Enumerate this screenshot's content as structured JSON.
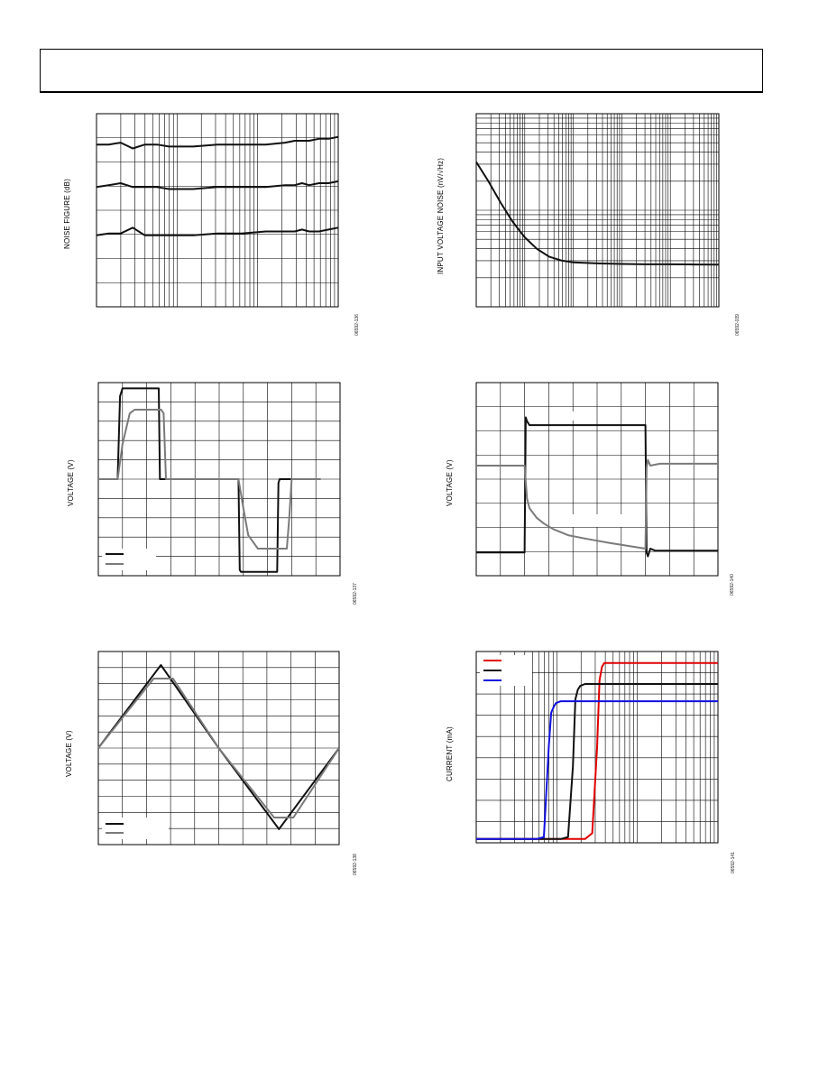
{
  "page": {
    "header": ""
  },
  "charts": [
    {
      "id": "nf",
      "figcode": "06592-136",
      "ylabel": "NOISE FIGURE (dB)"
    },
    {
      "id": "vn",
      "figcode": "06592-039",
      "ylabel": "INPUT VOLTAGE NOISE (nV/√Hz)"
    },
    {
      "id": "pulse",
      "figcode": "06592-137",
      "ylabel": "VOLTAGE (V)"
    },
    {
      "id": "step",
      "figcode": "06592-140",
      "ylabel": "VOLTAGE (V)"
    },
    {
      "id": "tri",
      "figcode": "06592-138",
      "ylabel": "VOLTAGE (V)"
    },
    {
      "id": "cur",
      "figcode": "06592-141",
      "ylabel": "CURRENT (mA)"
    }
  ],
  "chart_data": [
    {
      "type": "line",
      "ylabel": "NOISE FIGURE (dB)",
      "xscale": "log",
      "grid": true,
      "colors": [
        "#111111"
      ],
      "series": [
        {
          "x": [
            0.0,
            0.05,
            0.1,
            0.15,
            0.2,
            0.25,
            0.3,
            0.4,
            0.5,
            0.6,
            0.7,
            0.78,
            0.82,
            0.85,
            0.88,
            0.92,
            0.96,
            1.0
          ],
          "values": [
            0.84,
            0.84,
            0.85,
            0.82,
            0.84,
            0.84,
            0.83,
            0.83,
            0.84,
            0.84,
            0.84,
            0.85,
            0.86,
            0.86,
            0.86,
            0.87,
            0.87,
            0.88
          ]
        },
        {
          "x": [
            0.0,
            0.05,
            0.1,
            0.15,
            0.2,
            0.25,
            0.3,
            0.4,
            0.5,
            0.6,
            0.7,
            0.78,
            0.82,
            0.85,
            0.88,
            0.92,
            0.96,
            1.0
          ],
          "values": [
            0.62,
            0.63,
            0.64,
            0.62,
            0.62,
            0.62,
            0.61,
            0.61,
            0.62,
            0.62,
            0.62,
            0.63,
            0.63,
            0.64,
            0.63,
            0.64,
            0.64,
            0.65
          ]
        },
        {
          "x": [
            0.0,
            0.05,
            0.1,
            0.15,
            0.2,
            0.25,
            0.3,
            0.4,
            0.5,
            0.6,
            0.7,
            0.78,
            0.82,
            0.85,
            0.88,
            0.92,
            0.96,
            1.0
          ],
          "values": [
            0.37,
            0.38,
            0.38,
            0.41,
            0.37,
            0.37,
            0.37,
            0.37,
            0.38,
            0.38,
            0.39,
            0.39,
            0.39,
            0.4,
            0.39,
            0.39,
            0.4,
            0.41
          ]
        }
      ]
    },
    {
      "type": "line",
      "ylabel": "INPUT VOLTAGE NOISE (nV/√Hz)",
      "xscale": "log",
      "yscale": "log",
      "grid": true,
      "colors": [
        "#111111"
      ],
      "series": [
        {
          "x": [
            0.0,
            0.05,
            0.1,
            0.15,
            0.2,
            0.25,
            0.3,
            0.35,
            0.4,
            0.5,
            0.6,
            0.7,
            0.8,
            0.9,
            1.0
          ],
          "values": [
            0.75,
            0.65,
            0.54,
            0.44,
            0.36,
            0.3,
            0.26,
            0.24,
            0.23,
            0.225,
            0.222,
            0.22,
            0.22,
            0.219,
            0.218
          ]
        }
      ]
    },
    {
      "type": "line",
      "ylabel": "VOLTAGE (V)",
      "grid": true,
      "legend": "bottom-left",
      "colors": [
        "#111111",
        "#7a7a7a"
      ],
      "series": [
        {
          "x": [
            0.0,
            0.08,
            0.09,
            0.1,
            0.25,
            0.255,
            0.26,
            0.3,
            0.58,
            0.585,
            0.59,
            0.74,
            0.745,
            0.75,
            0.8
          ],
          "values": [
            0.5,
            0.5,
            0.93,
            0.97,
            0.97,
            0.5,
            0.5,
            0.5,
            0.5,
            0.03,
            0.02,
            0.02,
            0.48,
            0.5,
            0.5
          ]
        },
        {
          "x": [
            0.0,
            0.08,
            0.1,
            0.13,
            0.15,
            0.26,
            0.27,
            0.28,
            0.55,
            0.58,
            0.6,
            0.62,
            0.66,
            0.7,
            0.78,
            0.79,
            0.8,
            0.92
          ],
          "values": [
            0.5,
            0.5,
            0.68,
            0.84,
            0.86,
            0.86,
            0.84,
            0.5,
            0.5,
            0.5,
            0.35,
            0.21,
            0.14,
            0.14,
            0.14,
            0.3,
            0.5,
            0.5
          ]
        }
      ]
    },
    {
      "type": "line",
      "ylabel": "VOLTAGE (V)",
      "grid": true,
      "colors": [
        "#111111",
        "#7a7a7a"
      ],
      "series": [
        {
          "x": [
            0.0,
            0.2,
            0.205,
            0.21,
            0.22,
            0.7,
            0.705,
            0.71,
            0.72,
            0.74,
            1.0
          ],
          "values": [
            0.12,
            0.12,
            0.82,
            0.8,
            0.78,
            0.78,
            0.12,
            0.1,
            0.14,
            0.13,
            0.13
          ]
        },
        {
          "x": [
            0.0,
            0.2,
            0.21,
            0.22,
            0.25,
            0.28,
            0.32,
            0.38,
            0.46,
            0.55,
            0.65,
            0.7,
            0.705,
            0.71,
            0.72,
            0.76,
            1.0
          ],
          "values": [
            0.57,
            0.57,
            0.4,
            0.35,
            0.3,
            0.27,
            0.24,
            0.21,
            0.19,
            0.17,
            0.15,
            0.14,
            0.56,
            0.6,
            0.57,
            0.58,
            0.58
          ]
        }
      ]
    },
    {
      "type": "line",
      "ylabel": "VOLTAGE (V)",
      "grid": true,
      "legend": "bottom-left",
      "colors": [
        "#111111",
        "#7a7a7a"
      ],
      "series": [
        {
          "x": [
            0.0,
            0.26,
            0.5,
            0.75,
            1.0
          ],
          "values": [
            0.5,
            0.93,
            0.5,
            0.08,
            0.5
          ]
        },
        {
          "x": [
            0.0,
            0.23,
            0.31,
            0.5,
            0.73,
            0.81,
            1.0
          ],
          "values": [
            0.5,
            0.86,
            0.86,
            0.5,
            0.14,
            0.14,
            0.5
          ]
        }
      ]
    },
    {
      "type": "line",
      "ylabel": "CURRENT (mA)",
      "grid": true,
      "legend": "top-left",
      "colors": [
        "#e00000",
        "#111111",
        "#1010e0"
      ],
      "series": [
        {
          "x": [
            0.0,
            0.4,
            0.45,
            0.48,
            0.5,
            0.51,
            0.52,
            0.53,
            0.55,
            0.6,
            1.0
          ],
          "values": [
            0.02,
            0.02,
            0.02,
            0.05,
            0.5,
            0.85,
            0.92,
            0.94,
            0.94,
            0.94,
            0.94
          ]
        },
        {
          "x": [
            0.0,
            0.35,
            0.38,
            0.4,
            0.41,
            0.42,
            0.43,
            0.45,
            0.5,
            1.0
          ],
          "values": [
            0.02,
            0.02,
            0.03,
            0.4,
            0.75,
            0.8,
            0.82,
            0.83,
            0.83,
            0.83
          ]
        },
        {
          "x": [
            0.0,
            0.25,
            0.28,
            0.3,
            0.31,
            0.32,
            0.33,
            0.35,
            0.4,
            1.0
          ],
          "values": [
            0.02,
            0.02,
            0.03,
            0.5,
            0.68,
            0.71,
            0.73,
            0.74,
            0.74,
            0.74
          ]
        }
      ]
    }
  ]
}
